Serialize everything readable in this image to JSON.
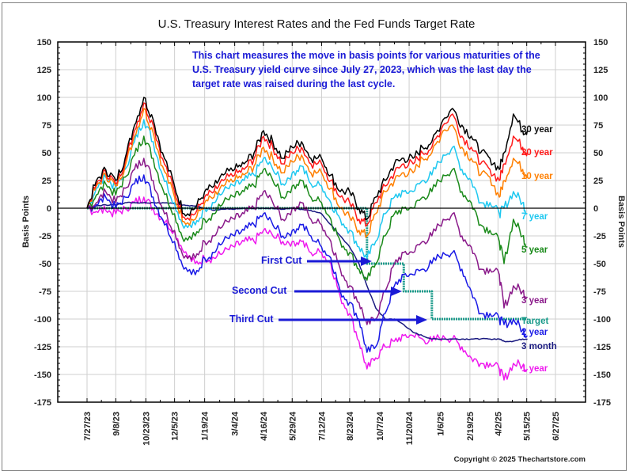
{
  "chart_data": {
    "type": "line",
    "title": "U.S. Treasury Interest Rates and the Fed Funds Target Rate",
    "annotation": [
      "This chart measures the move in basis points for various maturities of the",
      "U.S. Treasury yield curve since July 27, 2023, which was the last day the",
      "target rate was raised during the last cycle."
    ],
    "ylabel": "Basis Points",
    "ylabel_right": "Basis Points",
    "ylim": [
      -175,
      150
    ],
    "yticks": [
      150,
      125,
      100,
      75,
      50,
      25,
      0,
      -25,
      -50,
      -75,
      -100,
      -125,
      -150,
      -175
    ],
    "xlim": [
      "2023-06-15",
      "2025-08-10"
    ],
    "xticks": [
      {
        "date": "2023-07-27",
        "label": "7/27/23"
      },
      {
        "date": "2023-09-08",
        "label": "9/8/23"
      },
      {
        "date": "2023-10-23",
        "label": "10/23/23"
      },
      {
        "date": "2023-12-05",
        "label": "12/5/23"
      },
      {
        "date": "2024-01-19",
        "label": "1/19/24"
      },
      {
        "date": "2024-03-04",
        "label": "3/4/24"
      },
      {
        "date": "2024-04-16",
        "label": "4/16/24"
      },
      {
        "date": "2024-05-29",
        "label": "5/29/24"
      },
      {
        "date": "2024-07-12",
        "label": "7/12/24"
      },
      {
        "date": "2024-08-23",
        "label": "8/23/24"
      },
      {
        "date": "2024-10-07",
        "label": "10/7/24"
      },
      {
        "date": "2024-11-20",
        "label": "11/20/24"
      },
      {
        "date": "2025-01-06",
        "label": "1/6/25"
      },
      {
        "date": "2025-02-19",
        "label": "2/19/25"
      },
      {
        "date": "2025-04-02",
        "label": "4/2/25"
      },
      {
        "date": "2025-05-15",
        "label": "5/15/25"
      },
      {
        "date": "2025-06-27",
        "label": "6/27/25"
      }
    ],
    "grid": true,
    "x": [
      "2023-07-27",
      "2023-08-10",
      "2023-08-24",
      "2023-09-08",
      "2023-09-22",
      "2023-10-06",
      "2023-10-20",
      "2023-11-03",
      "2023-11-17",
      "2023-12-05",
      "2023-12-19",
      "2024-01-05",
      "2024-01-19",
      "2024-02-02",
      "2024-02-16",
      "2024-03-04",
      "2024-03-18",
      "2024-04-02",
      "2024-04-16",
      "2024-04-30",
      "2024-05-15",
      "2024-05-29",
      "2024-06-12",
      "2024-06-26",
      "2024-07-12",
      "2024-07-26",
      "2024-08-09",
      "2024-08-23",
      "2024-09-06",
      "2024-09-18",
      "2024-10-01",
      "2024-10-15",
      "2024-10-29",
      "2024-11-12",
      "2024-11-26",
      "2024-12-10",
      "2024-12-24",
      "2025-01-10",
      "2025-01-24",
      "2025-02-07",
      "2025-02-21",
      "2025-03-07",
      "2025-03-21",
      "2025-04-04",
      "2025-04-11",
      "2025-04-25",
      "2025-05-09",
      "2025-05-16"
    ],
    "series": [
      {
        "name": "30 year",
        "color": "#000000",
        "values": [
          0,
          25,
          35,
          25,
          45,
          75,
          100,
          80,
          50,
          20,
          -5,
          0,
          15,
          20,
          30,
          35,
          40,
          50,
          70,
          60,
          45,
          55,
          60,
          45,
          45,
          30,
          15,
          15,
          0,
          -10,
          10,
          25,
          40,
          45,
          45,
          55,
          60,
          80,
          90,
          75,
          65,
          50,
          45,
          35,
          50,
          85,
          70,
          70
        ]
      },
      {
        "name": "20 year",
        "color": "#ff1a1a",
        "values": [
          0,
          22,
          33,
          22,
          42,
          70,
          95,
          75,
          45,
          15,
          -8,
          -5,
          10,
          15,
          25,
          30,
          35,
          45,
          65,
          55,
          40,
          50,
          55,
          40,
          40,
          25,
          10,
          5,
          -10,
          -15,
          5,
          20,
          32,
          40,
          40,
          50,
          55,
          75,
          85,
          65,
          55,
          40,
          35,
          25,
          40,
          65,
          55,
          50
        ]
      },
      {
        "name": "10 year",
        "color": "#ff7f00",
        "values": [
          0,
          20,
          30,
          20,
          38,
          65,
          90,
          68,
          38,
          10,
          -12,
          -10,
          5,
          10,
          20,
          25,
          30,
          38,
          55,
          45,
          32,
          42,
          48,
          32,
          32,
          18,
          0,
          -8,
          -20,
          -25,
          -5,
          15,
          25,
          32,
          32,
          45,
          50,
          70,
          75,
          55,
          45,
          30,
          28,
          10,
          25,
          45,
          35,
          30
        ]
      },
      {
        "name": "7 year",
        "color": "#1ec8f0",
        "values": [
          0,
          18,
          28,
          18,
          35,
          60,
          80,
          60,
          30,
          5,
          -18,
          -15,
          0,
          5,
          15,
          20,
          25,
          30,
          45,
          35,
          22,
          32,
          38,
          22,
          20,
          5,
          -10,
          -20,
          -35,
          -45,
          -30,
          -5,
          10,
          15,
          15,
          25,
          30,
          48,
          55,
          35,
          25,
          5,
          5,
          -5,
          0,
          15,
          5,
          -5
        ]
      },
      {
        "name": "5 year",
        "color": "#1a8a1a",
        "values": [
          0,
          12,
          22,
          12,
          28,
          48,
          65,
          45,
          18,
          -5,
          -30,
          -25,
          -10,
          -5,
          5,
          10,
          15,
          20,
          35,
          25,
          10,
          20,
          25,
          10,
          5,
          -10,
          -30,
          -40,
          -55,
          -65,
          -50,
          -25,
          -5,
          0,
          0,
          10,
          15,
          30,
          35,
          15,
          5,
          -15,
          -20,
          -30,
          -50,
          -10,
          -25,
          -35
        ]
      },
      {
        "name": "3 year",
        "color": "#8a1a8a",
        "values": [
          0,
          5,
          15,
          5,
          18,
          35,
          45,
          25,
          0,
          -20,
          -45,
          -45,
          -30,
          -25,
          -15,
          -10,
          -5,
          0,
          15,
          5,
          -10,
          0,
          5,
          -10,
          -15,
          -30,
          -55,
          -70,
          -85,
          -105,
          -100,
          -75,
          -50,
          -40,
          -40,
          -30,
          -25,
          -10,
          -5,
          -25,
          -35,
          -55,
          -55,
          -60,
          -90,
          -70,
          -75,
          -80
        ]
      },
      {
        "name": "2 year",
        "color": "#1a1ae6",
        "values": [
          0,
          3,
          10,
          0,
          10,
          22,
          30,
          10,
          -10,
          -30,
          -55,
          -60,
          -45,
          -40,
          -30,
          -25,
          -20,
          -15,
          -5,
          -15,
          -25,
          -20,
          -15,
          -25,
          -35,
          -45,
          -75,
          -85,
          -100,
          -130,
          -125,
          -95,
          -70,
          -60,
          -60,
          -55,
          -50,
          -40,
          -40,
          -55,
          -75,
          -95,
          -95,
          -100,
          -105,
          -100,
          -110,
          -115
        ]
      },
      {
        "name": "1 year",
        "color": "#ee1aee",
        "values": [
          0,
          -3,
          -2,
          -5,
          0,
          5,
          10,
          0,
          -10,
          -20,
          -40,
          -50,
          -45,
          -45,
          -40,
          -35,
          -30,
          -30,
          -20,
          -25,
          -30,
          -30,
          -30,
          -40,
          -40,
          -50,
          -80,
          -95,
          -120,
          -145,
          -135,
          -125,
          -120,
          -115,
          -115,
          -118,
          -120,
          -115,
          -118,
          -125,
          -135,
          -140,
          -140,
          -145,
          -155,
          -140,
          -142,
          -145
        ]
      },
      {
        "name": "3 month",
        "color": "#1a1a80",
        "values": [
          0,
          2,
          3,
          3,
          5,
          5,
          5,
          5,
          5,
          4,
          3,
          2,
          0,
          -2,
          -1,
          -1,
          0,
          0,
          0,
          0,
          -1,
          0,
          -1,
          -2,
          -5,
          -15,
          -25,
          -35,
          -50,
          -70,
          -90,
          -100,
          -100,
          -105,
          -112,
          -115,
          -118,
          -118,
          -118,
          -118,
          -118,
          -118,
          -118,
          -118,
          -120,
          -120,
          -118,
          -118
        ]
      },
      {
        "name": "Target",
        "color": "#1a9a8a",
        "values": [
          0,
          0,
          0,
          0,
          0,
          0,
          0,
          0,
          0,
          0,
          0,
          0,
          0,
          0,
          0,
          0,
          0,
          0,
          0,
          0,
          0,
          0,
          0,
          0,
          0,
          0,
          0,
          0,
          0,
          -50,
          -50,
          -50,
          -50,
          -75,
          -75,
          -75,
          -100,
          -100,
          -100,
          -100,
          -100,
          -100,
          -100,
          -100,
          -100,
          -100,
          -100,
          -100
        ]
      }
    ],
    "end_labels": [
      {
        "name": "30 year",
        "color": "#111111"
      },
      {
        "name": "20 year",
        "color": "#ff1a1a"
      },
      {
        "name": "10 year",
        "color": "#ff7f00"
      },
      {
        "name": "7 year",
        "color": "#1ec8f0"
      },
      {
        "name": "5 year",
        "color": "#1a8a1a"
      },
      {
        "name": "3 year",
        "color": "#8a1a8a"
      },
      {
        "name": "Target",
        "color": "#1a9a8a"
      },
      {
        "name": "2 year",
        "color": "#1a1ae6"
      },
      {
        "name": "3 month",
        "color": "#1a1a80"
      },
      {
        "name": "1 year",
        "color": "#ee1aee"
      }
    ],
    "cut_annotations": [
      {
        "label": "First Cut",
        "date": "2024-09-18",
        "value": -50
      },
      {
        "label": "Second Cut",
        "date": "2024-11-07",
        "value": -75
      },
      {
        "label": "Third Cut",
        "date": "2024-12-18",
        "value": -100
      }
    ],
    "legend": "right-end-labels"
  },
  "copyright": "Copyright © 2025 Thechartstore.com",
  "colors": {
    "annotation": "#1a1ad6",
    "grid": "#cccccc",
    "zero_line": "#000000"
  }
}
